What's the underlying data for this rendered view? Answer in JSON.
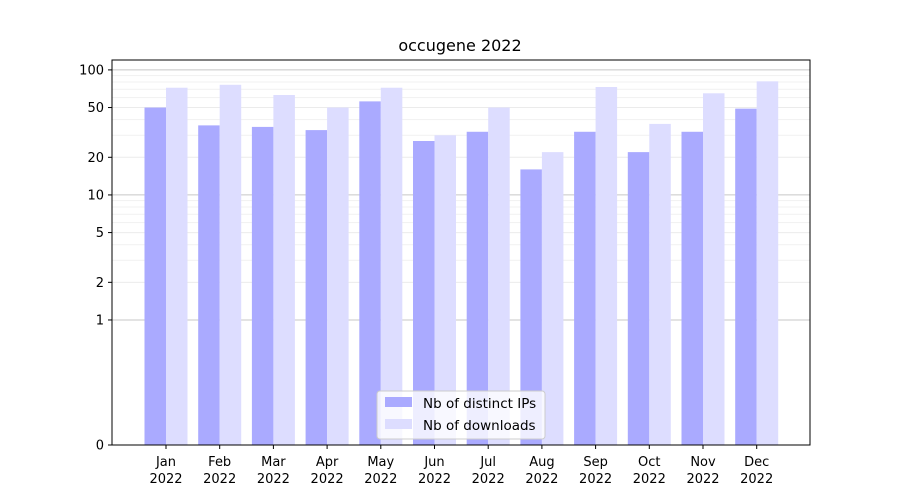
{
  "chart_data": {
    "type": "bar",
    "title": "occugene 2022",
    "xlabel": "",
    "ylabel": "",
    "y_scale": "symlog",
    "ylim": [
      0,
      120
    ],
    "y_ticks": [
      0,
      1,
      2,
      5,
      10,
      20,
      50,
      100
    ],
    "y_tick_labels": [
      "0",
      "1",
      "2",
      "5",
      "10",
      "20",
      "50",
      "100"
    ],
    "grid": true,
    "legend_position": "bottom-center",
    "categories": [
      "Jan",
      "Feb",
      "Mar",
      "Apr",
      "May",
      "Jun",
      "Jul",
      "Aug",
      "Sep",
      "Oct",
      "Nov",
      "Dec"
    ],
    "category_sublabel": "2022",
    "series": [
      {
        "name": "Nb of distinct IPs",
        "color": "#aaaaff",
        "values": [
          50,
          36,
          35,
          33,
          56,
          27,
          32,
          16,
          32,
          22,
          32,
          49
        ]
      },
      {
        "name": "Nb of downloads",
        "color": "#ddddff",
        "values": [
          72,
          76,
          63,
          50,
          72,
          30,
          50,
          22,
          73,
          37,
          65,
          81
        ]
      }
    ]
  }
}
